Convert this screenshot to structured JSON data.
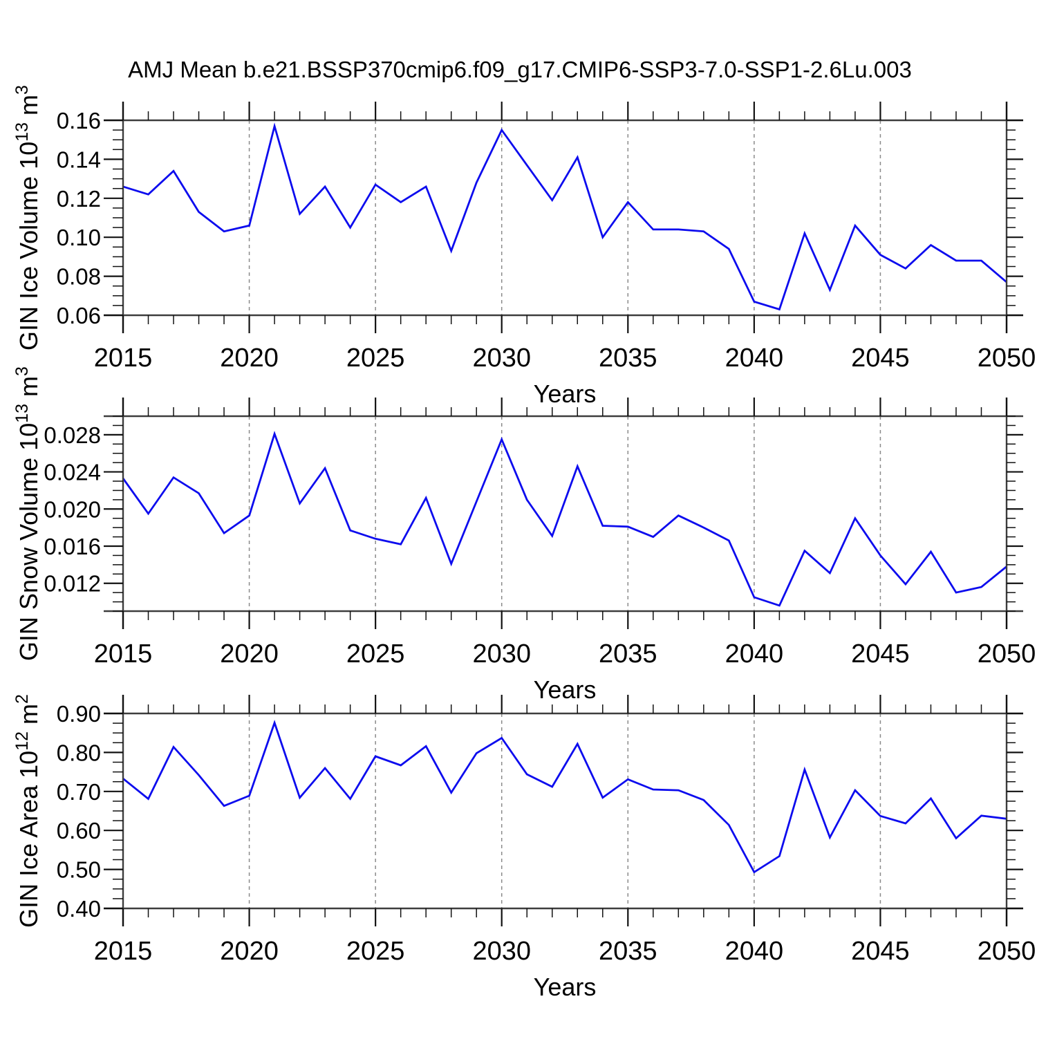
{
  "title": "AMJ Mean b.e21.BSSP370cmip6.f09_g17.CMIP6-SSP3-7.0-SSP1-2.6Lu.003",
  "colors": {
    "line": "#0d0cee",
    "frame": "#3d3d3d",
    "tick": "#111111",
    "gridline": "#8a8a8a",
    "background": "#ffffff",
    "text": "#000000"
  },
  "chart_data": [
    {
      "type": "line",
      "name": "gin-ice-volume",
      "ylabel_parts": [
        [
          "GIN Ice Volume 10",
          false
        ],
        [
          "13",
          true
        ],
        [
          " m",
          false
        ],
        [
          "3",
          true
        ]
      ],
      "xlabel": "Years",
      "x": [
        2015,
        2016,
        2017,
        2018,
        2019,
        2020,
        2021,
        2022,
        2023,
        2024,
        2025,
        2026,
        2027,
        2028,
        2029,
        2030,
        2031,
        2032,
        2033,
        2034,
        2035,
        2036,
        2037,
        2038,
        2039,
        2040,
        2041,
        2042,
        2043,
        2044,
        2045,
        2046,
        2047,
        2048,
        2049,
        2050
      ],
      "values": [
        0.126,
        0.122,
        0.134,
        0.113,
        0.103,
        0.106,
        0.157,
        0.112,
        0.126,
        0.105,
        0.127,
        0.118,
        0.126,
        0.093,
        0.128,
        0.155,
        0.137,
        0.119,
        0.141,
        0.1,
        0.118,
        0.104,
        0.104,
        0.103,
        0.094,
        0.067,
        0.063,
        0.102,
        0.073,
        0.106,
        0.091,
        0.084,
        0.096,
        0.088,
        0.088,
        0.077
      ],
      "ylim": [
        0.06,
        0.16
      ],
      "ytick_major": [
        0.06,
        0.08,
        0.1,
        0.12,
        0.14,
        0.16
      ],
      "ytick_labels": [
        "0.06",
        "0.08",
        "0.10",
        "0.12",
        "0.14",
        "0.16"
      ],
      "ytick_minor_step": 0.005,
      "xlim": [
        2015,
        2050
      ],
      "xtick_major": [
        2015,
        2020,
        2025,
        2030,
        2035,
        2040,
        2045,
        2050
      ],
      "xtick_labels": [
        "2015",
        "2020",
        "2025",
        "2030",
        "2035",
        "2040",
        "2045",
        "2050"
      ],
      "xtick_minor_step": 1,
      "gridline_years": [
        2020,
        2025,
        2030,
        2035,
        2040,
        2045
      ],
      "grid": true,
      "legend": "none"
    },
    {
      "type": "line",
      "name": "gin-snow-volume",
      "ylabel_parts": [
        [
          "GIN Snow Volume 10",
          false
        ],
        [
          "13",
          true
        ],
        [
          " m",
          false
        ],
        [
          "3",
          true
        ]
      ],
      "xlabel": "Years",
      "x": [
        2015,
        2016,
        2017,
        2018,
        2019,
        2020,
        2021,
        2022,
        2023,
        2024,
        2025,
        2026,
        2027,
        2028,
        2029,
        2030,
        2031,
        2032,
        2033,
        2034,
        2035,
        2036,
        2037,
        2038,
        2039,
        2040,
        2041,
        2042,
        2043,
        2044,
        2045,
        2046,
        2047,
        2048,
        2049,
        2050
      ],
      "values": [
        0.0233,
        0.0195,
        0.0234,
        0.0217,
        0.0174,
        0.0193,
        0.0281,
        0.0206,
        0.0244,
        0.0177,
        0.0168,
        0.0162,
        0.0212,
        0.0141,
        0.0208,
        0.0275,
        0.021,
        0.0171,
        0.0246,
        0.0182,
        0.0181,
        0.017,
        0.0193,
        0.018,
        0.0166,
        0.0105,
        0.0096,
        0.0155,
        0.0131,
        0.019,
        0.015,
        0.0119,
        0.0154,
        0.011,
        0.0116,
        0.0138
      ],
      "ylim": [
        0.009,
        0.03
      ],
      "ytick_major": [
        0.012,
        0.016,
        0.02,
        0.024,
        0.028
      ],
      "ytick_labels": [
        "0.012",
        "0.016",
        "0.020",
        "0.024",
        "0.028"
      ],
      "ytick_minor_step": 0.001,
      "xlim": [
        2015,
        2050
      ],
      "xtick_major": [
        2015,
        2020,
        2025,
        2030,
        2035,
        2040,
        2045,
        2050
      ],
      "xtick_labels": [
        "2015",
        "2020",
        "2025",
        "2030",
        "2035",
        "2040",
        "2045",
        "2050"
      ],
      "xtick_minor_step": 1,
      "gridline_years": [
        2020,
        2025,
        2030,
        2035,
        2040,
        2045
      ],
      "grid": true,
      "legend": "none"
    },
    {
      "type": "line",
      "name": "gin-ice-area",
      "ylabel_parts": [
        [
          "GIN Ice Area 10",
          false
        ],
        [
          "12",
          true
        ],
        [
          " m",
          false
        ],
        [
          "2",
          true
        ]
      ],
      "xlabel": "Years",
      "x": [
        2015,
        2016,
        2017,
        2018,
        2019,
        2020,
        2021,
        2022,
        2023,
        2024,
        2025,
        2026,
        2027,
        2028,
        2029,
        2030,
        2031,
        2032,
        2033,
        2034,
        2035,
        2036,
        2037,
        2038,
        2039,
        2040,
        2041,
        2042,
        2043,
        2044,
        2045,
        2046,
        2047,
        2048,
        2049,
        2050
      ],
      "values": [
        0.733,
        0.681,
        0.814,
        0.742,
        0.663,
        0.689,
        0.876,
        0.684,
        0.76,
        0.681,
        0.79,
        0.767,
        0.816,
        0.697,
        0.798,
        0.837,
        0.744,
        0.712,
        0.822,
        0.684,
        0.731,
        0.705,
        0.703,
        0.678,
        0.614,
        0.493,
        0.534,
        0.756,
        0.582,
        0.703,
        0.637,
        0.618,
        0.682,
        0.58,
        0.638,
        0.63
      ],
      "ylim": [
        0.4,
        0.9
      ],
      "ytick_major": [
        0.4,
        0.5,
        0.6,
        0.7,
        0.8,
        0.9
      ],
      "ytick_labels": [
        "0.40",
        "0.50",
        "0.60",
        "0.70",
        "0.80",
        "0.90"
      ],
      "ytick_minor_step": 0.025,
      "xlim": [
        2015,
        2050
      ],
      "xtick_major": [
        2015,
        2020,
        2025,
        2030,
        2035,
        2040,
        2045,
        2050
      ],
      "xtick_labels": [
        "2015",
        "2020",
        "2025",
        "2030",
        "2035",
        "2040",
        "2045",
        "2050"
      ],
      "xtick_minor_step": 1,
      "gridline_years": [
        2020,
        2025,
        2030,
        2035,
        2040,
        2045
      ],
      "grid": true,
      "legend": "none"
    }
  ]
}
